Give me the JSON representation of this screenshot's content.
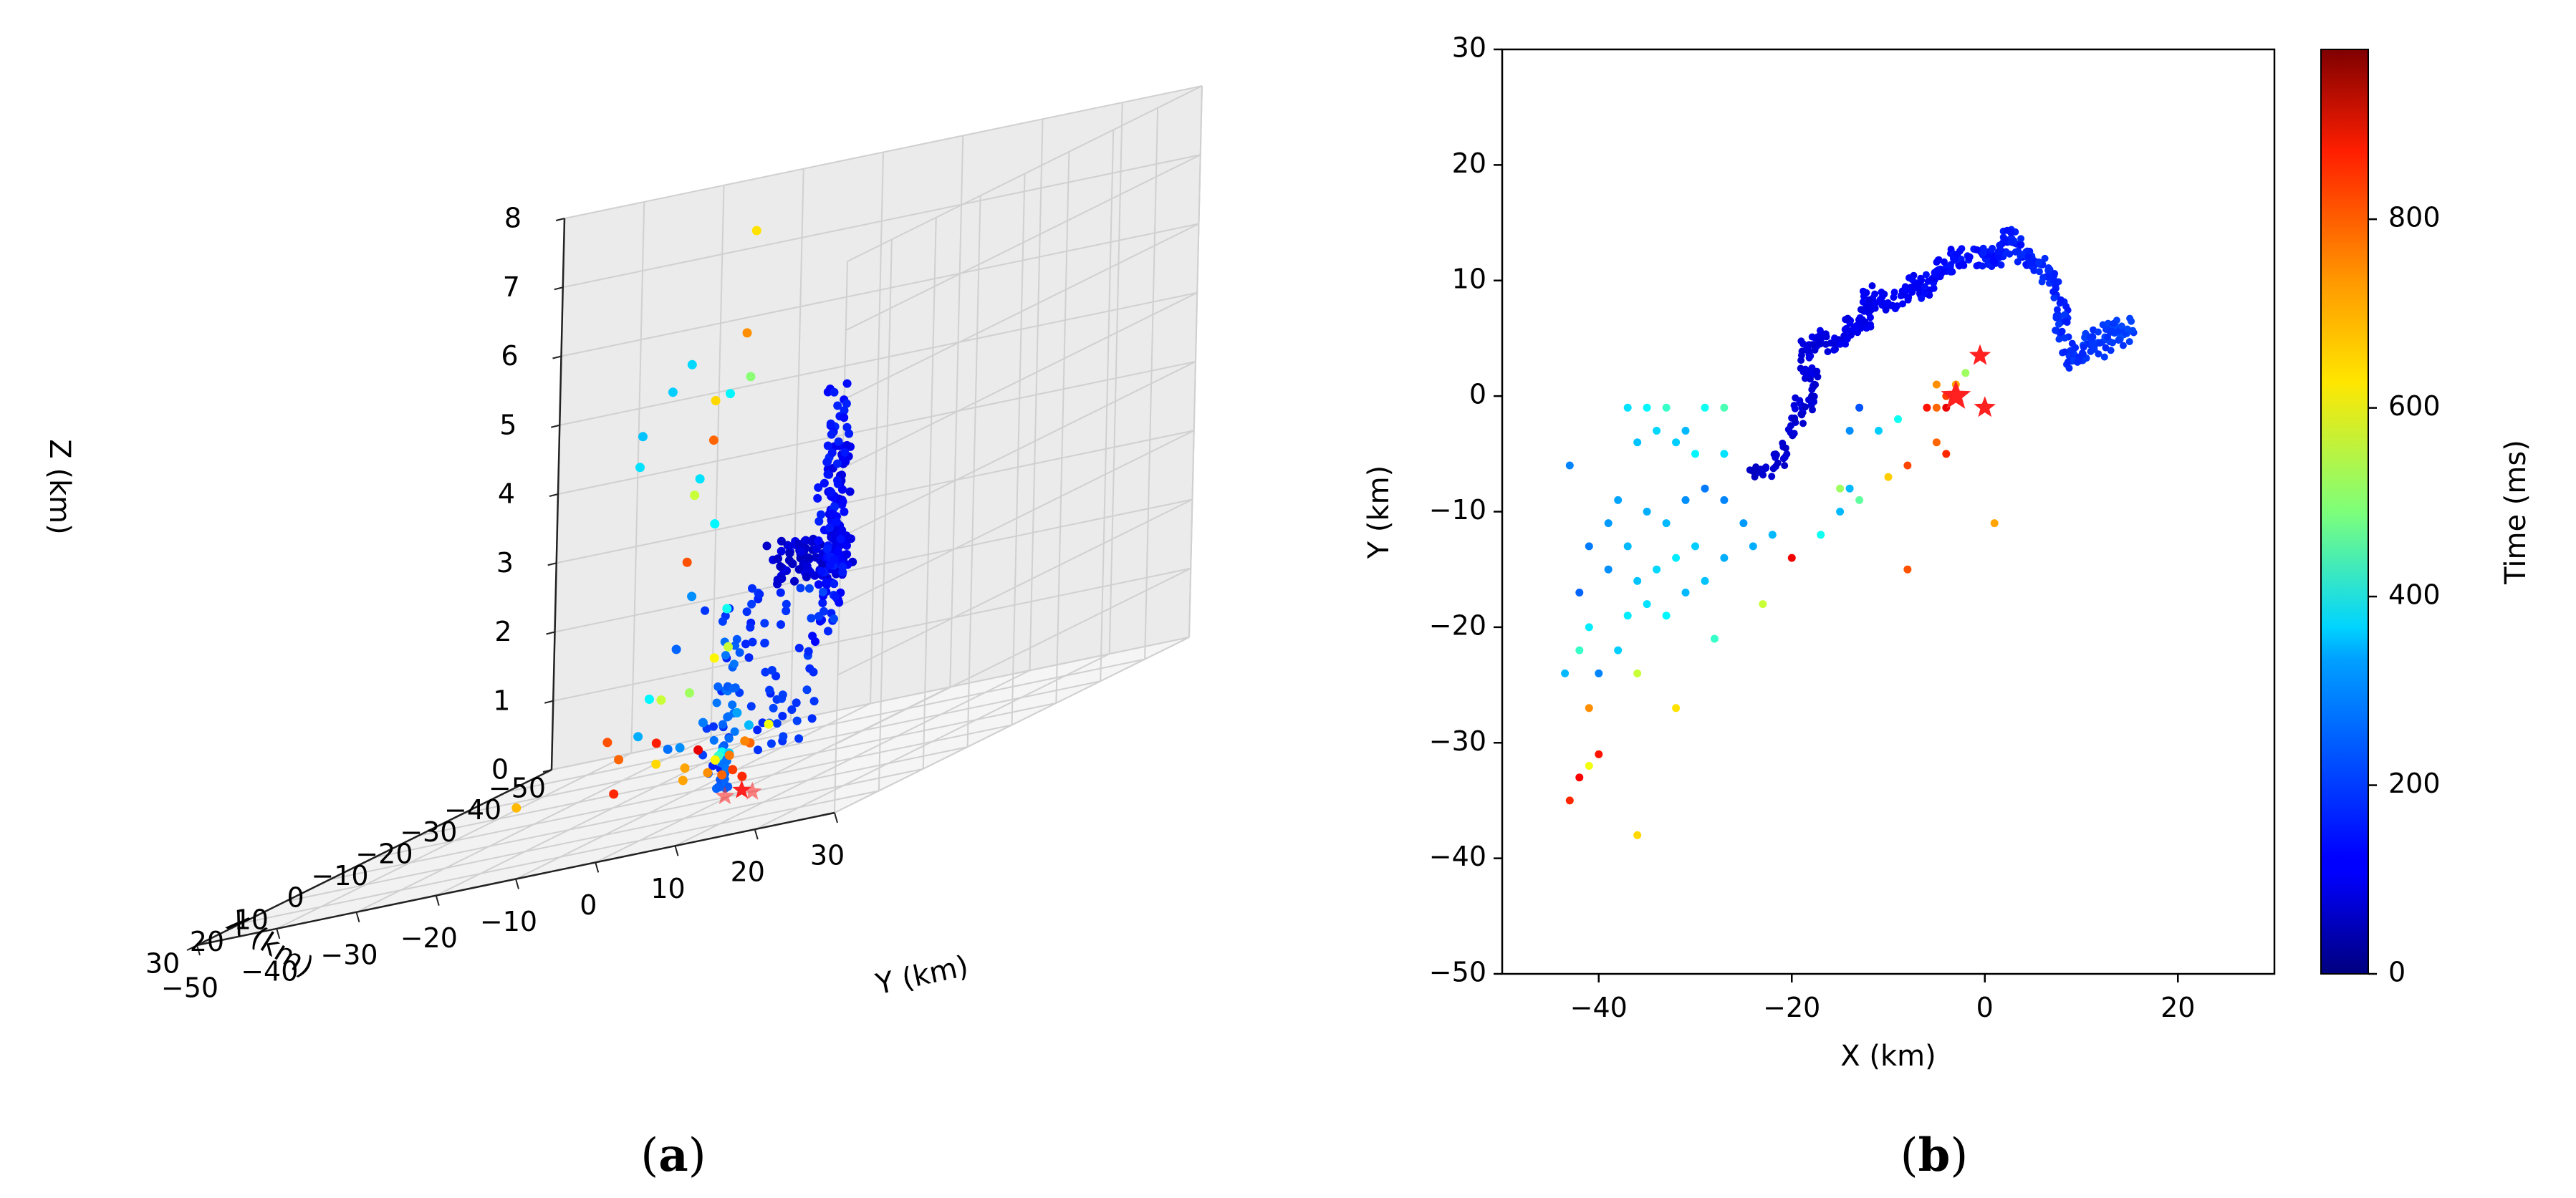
{
  "chart_data": [
    {
      "panel": "(a)",
      "panel_letter": "a",
      "type": "scatter",
      "projection": "3d",
      "xlabel": "X (km)",
      "ylabel": "Y (km)",
      "zlabel": "Z (km)",
      "xlim": [
        -50,
        30
      ],
      "ylim": [
        -50,
        30
      ],
      "zlim": [
        0,
        8
      ],
      "xticks": [
        "−50",
        "−40",
        "−30",
        "−20",
        "−10",
        "0",
        "10",
        "20",
        "30"
      ],
      "yticks": [
        "−50",
        "−40",
        "−30",
        "−20",
        "−10",
        "0",
        "10",
        "20",
        "30"
      ],
      "zticks": [
        "0",
        "1",
        "2",
        "3",
        "4",
        "5",
        "6",
        "7",
        "8"
      ],
      "grid": true,
      "color_by": "time_ms",
      "colormap": "jet",
      "star_color": "#ff2020",
      "points": [
        {
          "x": -45,
          "y": -20,
          "z": 0.1,
          "t": 600
        },
        {
          "x": -43,
          "y": -33,
          "z": 0.2,
          "t": 830
        },
        {
          "x": -40,
          "y": -28,
          "z": 2.8,
          "t": 780
        },
        {
          "x": -40,
          "y": -25,
          "z": 4.5,
          "t": 760
        },
        {
          "x": -38,
          "y": -20,
          "z": 6.0,
          "t": 720
        },
        {
          "x": -36,
          "y": -18,
          "z": 7.5,
          "t": 640
        },
        {
          "x": -33,
          "y": -21,
          "z": 5.2,
          "t": 650
        },
        {
          "x": -30,
          "y": -15,
          "z": 5.5,
          "t": 500
        },
        {
          "x": -33,
          "y": -27,
          "z": 1.0,
          "t": 560
        },
        {
          "x": -34,
          "y": -24,
          "z": 1.0,
          "t": 520
        },
        {
          "x": -25,
          "y": -16,
          "z": 1.6,
          "t": 620
        },
        {
          "x": -28,
          "y": -18,
          "z": 3.5,
          "t": 360
        },
        {
          "x": -28,
          "y": -20,
          "z": 4.2,
          "t": 340
        },
        {
          "x": -25,
          "y": -22,
          "z": 5.6,
          "t": 320
        },
        {
          "x": -22,
          "y": -18,
          "z": 6.0,
          "t": 330
        },
        {
          "x": -22,
          "y": -24,
          "z": 5.1,
          "t": 310
        },
        {
          "x": -34,
          "y": -24,
          "z": 2.4,
          "t": 260
        },
        {
          "x": -38,
          "y": -28,
          "z": 1.6,
          "t": 220
        },
        {
          "x": -30,
          "y": -20,
          "z": 0.6,
          "t": 240
        },
        {
          "x": -26,
          "y": -12,
          "z": 0.5,
          "t": 300
        },
        {
          "x": -20,
          "y": -12,
          "z": 0.3,
          "t": 380
        },
        {
          "x": -18,
          "y": -10,
          "z": 0.3,
          "t": 320
        },
        {
          "x": -15,
          "y": -10,
          "z": 0.3,
          "t": 360
        },
        {
          "x": -12,
          "y": -8,
          "z": 0.4,
          "t": 420
        },
        {
          "x": -20,
          "y": -15,
          "z": 0.4,
          "t": 880
        },
        {
          "x": -24,
          "y": -14,
          "z": 2.3,
          "t": 380
        },
        {
          "x": -20,
          "y": -12,
          "z": 5.5,
          "t": 360
        },
        {
          "x": -16,
          "y": -14,
          "z": 4.2,
          "t": 560
        },
        {
          "x": -8,
          "y": -10,
          "z": 0.4,
          "t": 700
        },
        {
          "x": -6,
          "y": -6,
          "z": 0.3,
          "t": 720
        },
        {
          "x": -14,
          "y": -18,
          "z": 1.4,
          "t": 360
        },
        {
          "x": -36,
          "y": -32,
          "z": 4.4,
          "t": 340
        },
        {
          "x": -30,
          "y": -32,
          "z": 0.6,
          "t": 780
        },
        {
          "x": -10,
          "y": -6,
          "z": 2.0,
          "t": 560
        },
        {
          "x": -4,
          "y": -4,
          "z": 0.5,
          "t": 620
        },
        {
          "x": -2,
          "y": -2,
          "z": 0.3,
          "t": 760
        },
        {
          "x": 0,
          "y": 0,
          "z": 0.6,
          "t": 740
        },
        {
          "x": -1,
          "y": 2,
          "z": 0.7,
          "t": 760
        },
        {
          "x": 2,
          "y": 3,
          "z": 0.8,
          "t": 730
        },
        {
          "x": 1,
          "y": 1,
          "z": 0.4,
          "t": 800
        },
        {
          "x": -3,
          "y": 0,
          "z": 0.2,
          "t": 820
        },
        {
          "x": -4,
          "y": -8,
          "z": 0.3,
          "t": 700
        },
        {
          "x": -5,
          "y": -12,
          "z": 0.6,
          "t": 650
        },
        {
          "x": -15,
          "y": -35,
          "z": 0.2,
          "t": 680
        },
        {
          "x": -20,
          "y": -25,
          "z": 0.5,
          "t": 760
        },
        {
          "x": -10,
          "y": -20,
          "z": 0.2,
          "t": 820
        },
        {
          "x": -14,
          "y": -14,
          "z": 0.6,
          "t": 260
        },
        {
          "x": -16,
          "y": -8,
          "z": 0.9,
          "t": 280
        },
        {
          "x": -8,
          "y": -16,
          "z": 1.0,
          "t": 290
        },
        {
          "x": -4,
          "y": -10,
          "z": 0.8,
          "t": 230
        }
      ],
      "blue_tracks": [
        {
          "x0": -20,
          "y0": -6,
          "x1": -15,
          "y1": 5,
          "z0": 2.6,
          "z1": 3.2,
          "n": 70,
          "t": 60
        },
        {
          "x0": -15,
          "y0": 5,
          "x1": -5,
          "y1": 10,
          "z0": 2.8,
          "z1": 4.6,
          "n": 70,
          "t": 90
        },
        {
          "x0": -5,
          "y0": 10,
          "x1": 3,
          "y1": 13,
          "z0": 2.0,
          "z1": 5.6,
          "n": 80,
          "t": 120
        },
        {
          "x0": 3,
          "y0": 13,
          "x1": 12,
          "y1": 4,
          "z0": 0.6,
          "z1": 3.2,
          "n": 70,
          "t": 150
        },
        {
          "x0": 8,
          "y0": 4,
          "x1": 13,
          "y1": 6,
          "z0": 0.2,
          "z1": 2.6,
          "n": 40,
          "t": 200
        }
      ],
      "stars": [
        {
          "x": -3,
          "y": 0,
          "z": 0
        },
        {
          "x": 0,
          "y": 3,
          "z": 0
        },
        {
          "x": -1,
          "y": -1,
          "z": 0
        }
      ]
    },
    {
      "panel": "(b)",
      "panel_letter": "b",
      "type": "scatter",
      "xlabel": "X (km)",
      "ylabel": "Y (km)",
      "xlim": [
        -50,
        30
      ],
      "ylim": [
        -50,
        30
      ],
      "xticks": [
        "−40",
        "−20",
        "0",
        "20"
      ],
      "yticks": [
        "30",
        "20",
        "10",
        "0",
        "−10",
        "−20",
        "−30",
        "−40",
        "−50"
      ],
      "colorbar": {
        "label": "Time (ms)",
        "range": [
          0,
          980
        ],
        "ticks": [
          "0",
          "200",
          "400",
          "600",
          "800"
        ],
        "colormap": "jet"
      },
      "star_color": "#ff2020",
      "blue_path": [
        [
          -24,
          -7
        ],
        [
          -22,
          -6
        ],
        [
          -20,
          -4
        ],
        [
          -19,
          -1
        ],
        [
          -18,
          0
        ],
        [
          -18,
          2
        ],
        [
          -19,
          4
        ],
        [
          -17,
          5
        ],
        [
          -15,
          4
        ],
        [
          -14,
          6
        ],
        [
          -13,
          6
        ],
        [
          -12,
          7
        ],
        [
          -12,
          9
        ],
        [
          -10,
          8
        ],
        [
          -8,
          9
        ],
        [
          -7,
          10
        ],
        [
          -6,
          9
        ],
        [
          -5,
          11
        ],
        [
          -4,
          11
        ],
        [
          -3,
          12
        ],
        [
          -2,
          12
        ],
        [
          0,
          12
        ],
        [
          1,
          12
        ],
        [
          2,
          13
        ],
        [
          3,
          14
        ],
        [
          4,
          12
        ],
        [
          5,
          12
        ],
        [
          6,
          11
        ],
        [
          7,
          10
        ],
        [
          8,
          7
        ],
        [
          8,
          5
        ],
        [
          9,
          3
        ],
        [
          10,
          4
        ],
        [
          11,
          5
        ],
        [
          12,
          4
        ],
        [
          13,
          6
        ],
        [
          14,
          5
        ],
        [
          15,
          6
        ]
      ],
      "points": [
        {
          "x": -43.5,
          "y": -24,
          "t": 300
        },
        {
          "x": -42,
          "y": -22,
          "t": 420
        },
        {
          "x": -41,
          "y": -20,
          "t": 350
        },
        {
          "x": -43,
          "y": -6,
          "t": 250
        },
        {
          "x": -41,
          "y": -13,
          "t": 240
        },
        {
          "x": -42,
          "y": -17,
          "t": 220
        },
        {
          "x": -40,
          "y": -24,
          "t": 250
        },
        {
          "x": -41,
          "y": -27,
          "t": 720
        },
        {
          "x": -40,
          "y": -31,
          "t": 840
        },
        {
          "x": -41,
          "y": -32,
          "t": 600
        },
        {
          "x": -42,
          "y": -33,
          "t": 860
        },
        {
          "x": -43,
          "y": -35,
          "t": 820
        },
        {
          "x": -36,
          "y": -38,
          "t": 650
        },
        {
          "x": -36,
          "y": -24,
          "t": 560
        },
        {
          "x": -32,
          "y": -27,
          "t": 640
        },
        {
          "x": -37,
          "y": -1,
          "t": 340
        },
        {
          "x": -35,
          "y": -1,
          "t": 360
        },
        {
          "x": -33,
          "y": -1,
          "t": 420
        },
        {
          "x": -31,
          "y": -3,
          "t": 300
        },
        {
          "x": -29,
          "y": -1,
          "t": 380
        },
        {
          "x": -27,
          "y": -1,
          "t": 440
        },
        {
          "x": -34,
          "y": -3,
          "t": 330
        },
        {
          "x": -36,
          "y": -4,
          "t": 310
        },
        {
          "x": -32,
          "y": -4,
          "t": 320
        },
        {
          "x": -30,
          "y": -5,
          "t": 360
        },
        {
          "x": -27,
          "y": -5,
          "t": 340
        },
        {
          "x": -38,
          "y": -9,
          "t": 280
        },
        {
          "x": -35,
          "y": -10,
          "t": 290
        },
        {
          "x": -33,
          "y": -11,
          "t": 300
        },
        {
          "x": -31,
          "y": -9,
          "t": 260
        },
        {
          "x": -29,
          "y": -8,
          "t": 240
        },
        {
          "x": -27,
          "y": -9,
          "t": 250
        },
        {
          "x": -25,
          "y": -11,
          "t": 270
        },
        {
          "x": -24,
          "y": -13,
          "t": 290
        },
        {
          "x": -22,
          "y": -12,
          "t": 300
        },
        {
          "x": -30,
          "y": -13,
          "t": 320
        },
        {
          "x": -32,
          "y": -14,
          "t": 350
        },
        {
          "x": -34,
          "y": -15,
          "t": 330
        },
        {
          "x": -36,
          "y": -16,
          "t": 310
        },
        {
          "x": -35,
          "y": -18,
          "t": 340
        },
        {
          "x": -33,
          "y": -19,
          "t": 360
        },
        {
          "x": -31,
          "y": -17,
          "t": 300
        },
        {
          "x": -29,
          "y": -16,
          "t": 310
        },
        {
          "x": -27,
          "y": -14,
          "t": 290
        },
        {
          "x": -37,
          "y": -19,
          "t": 350
        },
        {
          "x": -38,
          "y": -22,
          "t": 320
        },
        {
          "x": -28,
          "y": -21,
          "t": 420
        },
        {
          "x": -23,
          "y": -18,
          "t": 560
        },
        {
          "x": -20,
          "y": -14,
          "t": 870
        },
        {
          "x": -17,
          "y": -12,
          "t": 380
        },
        {
          "x": -15,
          "y": -10,
          "t": 300
        },
        {
          "x": -13,
          "y": -9,
          "t": 460
        },
        {
          "x": -15,
          "y": -8,
          "t": 520
        },
        {
          "x": -10,
          "y": -7,
          "t": 660
        },
        {
          "x": -8,
          "y": -6,
          "t": 790
        },
        {
          "x": -8,
          "y": -15,
          "t": 780
        },
        {
          "x": -5,
          "y": -4,
          "t": 760
        },
        {
          "x": -4,
          "y": -5,
          "t": 820
        },
        {
          "x": -5,
          "y": -1,
          "t": 760
        },
        {
          "x": -4,
          "y": 0,
          "t": 800
        },
        {
          "x": -5,
          "y": 1,
          "t": 720
        },
        {
          "x": -3,
          "y": 1,
          "t": 700
        },
        {
          "x": -2,
          "y": 2,
          "t": 520
        },
        {
          "x": 1,
          "y": -11,
          "t": 700
        },
        {
          "x": -9,
          "y": -2,
          "t": 380
        },
        {
          "x": -11,
          "y": -3,
          "t": 320
        },
        {
          "x": -6,
          "y": -1,
          "t": 840
        },
        {
          "x": -14,
          "y": -3,
          "t": 260
        },
        {
          "x": -13,
          "y": -1,
          "t": 200
        },
        {
          "x": -4,
          "y": -1,
          "t": 880
        },
        {
          "x": -14,
          "y": -8,
          "t": 300
        },
        {
          "x": -39,
          "y": -15,
          "t": 260
        },
        {
          "x": -39,
          "y": -11,
          "t": 270
        },
        {
          "x": -37,
          "y": -13,
          "t": 300
        }
      ],
      "stars": [
        {
          "x": -0.5,
          "y": 3.5,
          "size": "small"
        },
        {
          "x": -3,
          "y": 0,
          "size": "large"
        },
        {
          "x": 0,
          "y": -1,
          "size": "small"
        }
      ]
    }
  ]
}
